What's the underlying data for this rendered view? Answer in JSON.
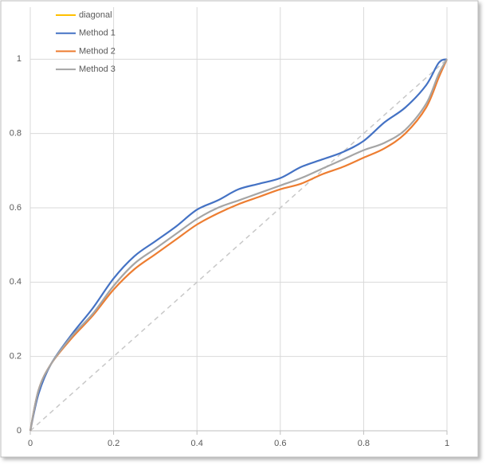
{
  "chart_data": {
    "type": "line",
    "x": [
      0,
      0.02,
      0.05,
      0.1,
      0.15,
      0.2,
      0.25,
      0.3,
      0.35,
      0.4,
      0.45,
      0.5,
      0.55,
      0.6,
      0.65,
      0.7,
      0.75,
      0.8,
      0.85,
      0.9,
      0.95,
      0.98,
      1
    ],
    "series": [
      {
        "name": "diagonal",
        "color": "#ffc000",
        "line_color": "#c8c8c8",
        "dashed": true,
        "x": [
          0,
          1
        ],
        "values": [
          0,
          1
        ]
      },
      {
        "name": "Method 1",
        "color": "#4472c4",
        "values": [
          0,
          0.1,
          0.18,
          0.26,
          0.33,
          0.41,
          0.47,
          0.51,
          0.55,
          0.595,
          0.62,
          0.65,
          0.665,
          0.68,
          0.71,
          0.73,
          0.75,
          0.78,
          0.83,
          0.87,
          0.93,
          0.99,
          1
        ]
      },
      {
        "name": "Method 2",
        "color": "#ed7d31",
        "values": [
          0,
          0.11,
          0.18,
          0.25,
          0.31,
          0.38,
          0.435,
          0.475,
          0.515,
          0.555,
          0.585,
          0.61,
          0.63,
          0.65,
          0.665,
          0.69,
          0.71,
          0.735,
          0.76,
          0.8,
          0.87,
          0.95,
          1
        ]
      },
      {
        "name": "Method 3",
        "color": "#a5a5a5",
        "values": [
          0,
          0.11,
          0.18,
          0.255,
          0.315,
          0.39,
          0.45,
          0.49,
          0.53,
          0.57,
          0.6,
          0.62,
          0.64,
          0.66,
          0.68,
          0.705,
          0.73,
          0.755,
          0.775,
          0.81,
          0.88,
          0.96,
          1
        ]
      }
    ],
    "xlim": [
      0,
      1
    ],
    "xticks": [
      0,
      0.2,
      0.4,
      0.6,
      0.8,
      1
    ],
    "ylim": [
      0,
      1.14
    ],
    "yticks": [
      0,
      0.2,
      0.4,
      0.6,
      0.8,
      1
    ],
    "grid": true,
    "legend": "top-left"
  }
}
